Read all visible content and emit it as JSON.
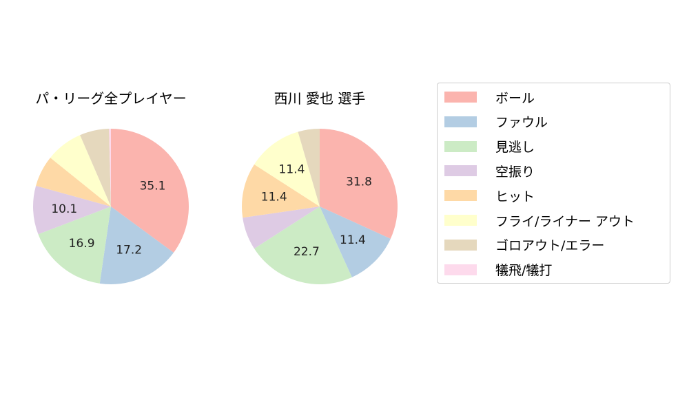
{
  "chart_data": [
    {
      "type": "pie",
      "title": "パ・リーグ全プレイヤー",
      "categories": [
        "ボール",
        "ファウル",
        "見逃し",
        "空振り",
        "ヒット",
        "フライ/ライナー アウト",
        "ゴロアウト/エラー",
        "犠飛/犠打"
      ],
      "values": [
        35.1,
        17.2,
        16.9,
        10.1,
        6.5,
        7.7,
        6.1,
        0.4
      ],
      "labels_shown": [
        "35.1",
        "17.2",
        "16.9",
        "10.1",
        "",
        "",
        "",
        ""
      ],
      "start_angle": 90,
      "direction": "clockwise"
    },
    {
      "type": "pie",
      "title": "西川 愛也  選手",
      "categories": [
        "ボール",
        "ファウル",
        "見逃し",
        "空振り",
        "ヒット",
        "フライ/ライナー アウト",
        "ゴロアウト/エラー",
        "犠飛/犠打"
      ],
      "values": [
        31.8,
        11.4,
        22.7,
        6.8,
        11.4,
        11.4,
        4.5,
        0.0
      ],
      "labels_shown": [
        "31.8",
        "11.4",
        "22.7",
        "",
        "11.4",
        "11.4",
        "",
        ""
      ],
      "start_angle": 90,
      "direction": "clockwise"
    }
  ],
  "legend": {
    "items": [
      {
        "label": "ボール",
        "color": "#fbb4ae"
      },
      {
        "label": "ファウル",
        "color": "#b3cde3"
      },
      {
        "label": "見逃し",
        "color": "#ccebc5"
      },
      {
        "label": "空振り",
        "color": "#decbe4"
      },
      {
        "label": "ヒット",
        "color": "#fed9a6"
      },
      {
        "label": "フライ/ライナー アウト",
        "color": "#ffffcc"
      },
      {
        "label": "ゴロアウト/エラー",
        "color": "#e5d8bd"
      },
      {
        "label": "犠飛/犠打",
        "color": "#fddaec"
      }
    ]
  },
  "titles": {
    "left": "パ・リーグ全プレイヤー",
    "right": "西川 愛也  選手"
  }
}
